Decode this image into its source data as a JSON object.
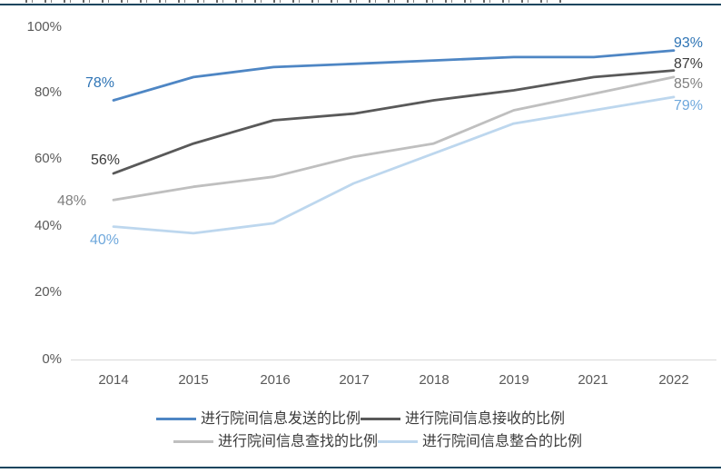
{
  "page": {
    "background": "#ffffff",
    "rule_color": "#17455e",
    "axis_color": "#d9d9d9",
    "tick_text_color": "#595959"
  },
  "chart_data": {
    "type": "line",
    "title": "",
    "xlabel": "",
    "ylabel": "",
    "ylim": [
      0,
      100
    ],
    "grid": false,
    "legend_position": "bottom",
    "yticks": [
      "100%",
      "80%",
      "60%",
      "40%",
      "20%",
      "0%"
    ],
    "categories": [
      "2014",
      "2015",
      "2016",
      "2017",
      "2018",
      "2019",
      "2021",
      "2022"
    ],
    "series": [
      {
        "name": "进行院间信息发送的比例",
        "color": "#4e86c4",
        "label_color": "#2e74b5",
        "values": [
          78,
          85,
          88,
          89,
          90,
          91,
          91,
          93
        ],
        "first_label": "78%",
        "last_label": "93%"
      },
      {
        "name": "进行院间信息接收的比例",
        "color": "#595959",
        "label_color": "#3b3b3b",
        "values": [
          56,
          65,
          72,
          74,
          78,
          81,
          85,
          87
        ],
        "first_label": "56%",
        "last_label": "87%"
      },
      {
        "name": "进行院间信息查找的比例",
        "color": "#bfbfbf",
        "label_color": "#7f7f7f",
        "values": [
          48,
          52,
          55,
          61,
          65,
          75,
          80,
          85
        ],
        "first_label": "48%",
        "last_label": "85%"
      },
      {
        "name": "进行院间信息整合的比例",
        "color": "#bdd7ee",
        "label_color": "#6fa8dc",
        "values": [
          40,
          38,
          41,
          53,
          62,
          71,
          75,
          79
        ],
        "first_label": "40%",
        "last_label": "79%"
      }
    ]
  }
}
